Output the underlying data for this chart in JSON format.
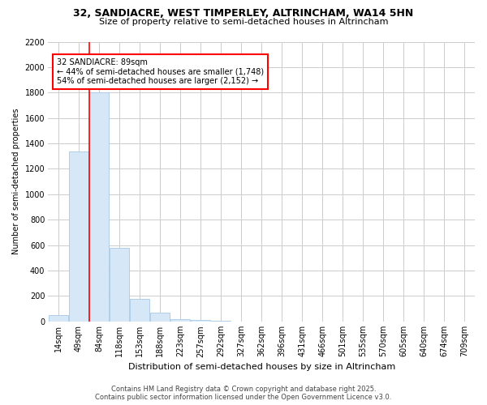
{
  "title_line1": "32, SANDIACRE, WEST TIMPERLEY, ALTRINCHAM, WA14 5HN",
  "title_line2": "Size of property relative to semi-detached houses in Altrincham",
  "xlabel": "Distribution of semi-detached houses by size in Altrincham",
  "ylabel": "Number of semi-detached properties",
  "categories": [
    "14sqm",
    "49sqm",
    "84sqm",
    "118sqm",
    "153sqm",
    "188sqm",
    "223sqm",
    "257sqm",
    "292sqm",
    "327sqm",
    "362sqm",
    "396sqm",
    "431sqm",
    "466sqm",
    "501sqm",
    "535sqm",
    "570sqm",
    "605sqm",
    "640sqm",
    "674sqm",
    "709sqm"
  ],
  "values": [
    50,
    1340,
    1800,
    580,
    175,
    70,
    20,
    12,
    5,
    2,
    0,
    0,
    0,
    0,
    0,
    0,
    0,
    0,
    0,
    0,
    0
  ],
  "bar_color": "#d6e8f7",
  "bar_edge_color": "#a8c8e8",
  "red_line_x": 1.5,
  "annotation_text": "32 SANDIACRE: 89sqm\n← 44% of semi-detached houses are smaller (1,748)\n54% of semi-detached houses are larger (2,152) →",
  "ylim": [
    0,
    2200
  ],
  "yticks": [
    0,
    200,
    400,
    600,
    800,
    1000,
    1200,
    1400,
    1600,
    1800,
    2000,
    2200
  ],
  "footer_line1": "Contains HM Land Registry data © Crown copyright and database right 2025.",
  "footer_line2": "Contains public sector information licensed under the Open Government Licence v3.0.",
  "bg_color": "#ffffff",
  "grid_color": "#cccccc",
  "title_fontsize": 9,
  "subtitle_fontsize": 8,
  "tick_fontsize": 7,
  "ylabel_fontsize": 7,
  "xlabel_fontsize": 8,
  "footer_fontsize": 6
}
